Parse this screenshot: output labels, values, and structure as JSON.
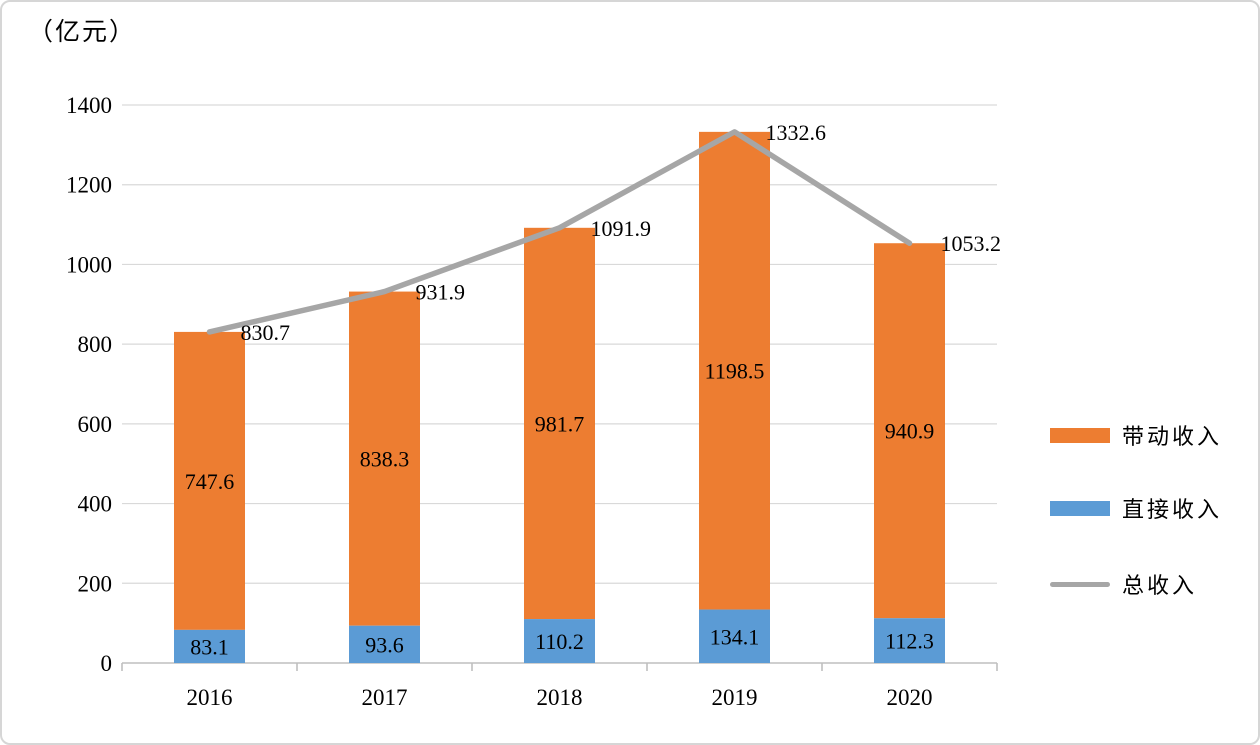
{
  "chart_data": {
    "type": "bar",
    "subtype": "stacked-bars-with-total-line",
    "title": "",
    "unit_label": "（亿元）",
    "categories": [
      "2016",
      "2017",
      "2018",
      "2019",
      "2020"
    ],
    "series": [
      {
        "name": "直接收入",
        "type": "bar",
        "role": "direct",
        "color": "#5B9BD5",
        "values": [
          83.1,
          93.6,
          110.2,
          134.1,
          112.3
        ]
      },
      {
        "name": "带动收入",
        "type": "bar",
        "role": "driven",
        "color": "#ED7D31",
        "values": [
          747.6,
          838.3,
          981.7,
          1198.5,
          940.9
        ]
      },
      {
        "name": "总收入",
        "type": "line",
        "role": "total",
        "color": "#A6A6A6",
        "values": [
          830.7,
          931.9,
          1091.9,
          1332.6,
          1053.2
        ]
      }
    ],
    "y_axis": {
      "min": 0,
      "max": 1400,
      "step": 200,
      "tick_labels": [
        "0",
        "200",
        "400",
        "600",
        "800",
        "1000",
        "1200",
        "1400"
      ]
    },
    "grid": true,
    "legend_position": "right",
    "colors": {
      "grid": "#D9D9D9",
      "axis": "#BFBFBF",
      "label_text": "#000000"
    }
  }
}
